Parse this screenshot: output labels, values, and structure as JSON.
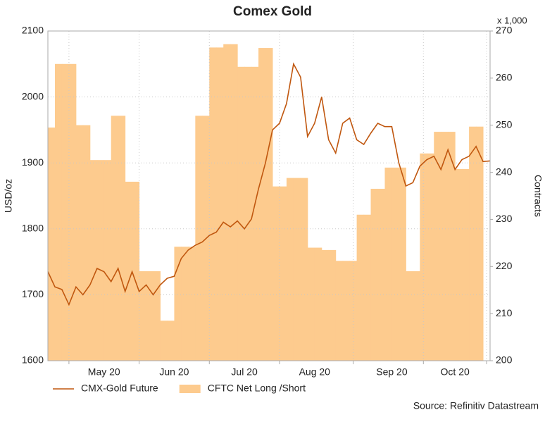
{
  "chart_data": {
    "type": "combo",
    "title": "Comex Gold",
    "y_label": "USD/oz",
    "y2_label": "Contracts",
    "y2_unit_label": "x 1,000",
    "source": "Source: Refinitiv Datastream",
    "categories": [
      null,
      null,
      null,
      null,
      null,
      null,
      null,
      null,
      "May 20",
      null,
      null,
      null,
      null,
      null,
      null,
      null,
      null,
      null,
      "Jun 20",
      null,
      null,
      null,
      null,
      null,
      null,
      null,
      null,
      null,
      "Jul 20",
      null,
      null,
      null,
      null,
      null,
      null,
      null,
      null,
      null,
      "Aug 20",
      null,
      null,
      null,
      null,
      null,
      null,
      null,
      null,
      null,
      null,
      "Sep 20",
      null,
      null,
      null,
      null,
      null,
      null,
      null,
      null,
      "Oct 20",
      null,
      null,
      null,
      null,
      null
    ],
    "series": [
      {
        "name": "CMX-Gold Future",
        "type": "line",
        "color": "#c0570f",
        "values": [
          1735,
          1712,
          1708,
          1685,
          1712,
          1700,
          1715,
          1740,
          1735,
          1720,
          1740,
          1705,
          1735,
          1705,
          1715,
          1700,
          1715,
          1725,
          1728,
          1755,
          1768,
          1775,
          1780,
          1790,
          1795,
          1810,
          1803,
          1812,
          1800,
          1815,
          1860,
          1900,
          1950,
          1960,
          1990,
          2050,
          2030,
          1940,
          1960,
          2000,
          1935,
          1915,
          1960,
          1968,
          1935,
          1928,
          1945,
          1960,
          1955,
          1955,
          1900,
          1865,
          1870,
          1895,
          1905,
          1910,
          1890,
          1920,
          1890,
          1905,
          1910,
          1925,
          1902,
          1903
        ]
      },
      {
        "name": "CFTC Net Long /Short",
        "type": "area",
        "axis": "y2",
        "color": "#fdcb8e",
        "values": [
          249.5,
          263,
          263,
          263,
          250,
          250,
          242.6,
          242.6,
          242.6,
          252,
          252,
          238,
          238,
          219,
          219,
          219,
          208.5,
          208.5,
          224.2,
          224.2,
          224.2,
          252,
          252,
          266.5,
          266.5,
          267.2,
          267.2,
          262.4,
          262.4,
          262.4,
          266.4,
          266.4,
          237,
          237,
          238.8,
          238.8,
          238.8,
          224,
          224,
          223.5,
          223.5,
          221.2,
          221.2,
          221.2,
          231,
          231,
          236.5,
          236.5,
          241,
          241,
          241,
          219,
          219,
          244,
          244,
          248.6,
          248.6,
          248.6,
          240.7,
          240.7,
          249.7,
          249.7,
          null,
          null
        ]
      }
    ],
    "ylim": [
      1600,
      2100
    ],
    "yticks": [
      1600,
      1700,
      1800,
      1900,
      2000,
      2100
    ],
    "y2lim": [
      200,
      270
    ],
    "y2ticks": [
      200,
      210,
      220,
      230,
      240,
      250,
      260,
      270
    ],
    "grid": true,
    "legend": "bottom-left"
  }
}
